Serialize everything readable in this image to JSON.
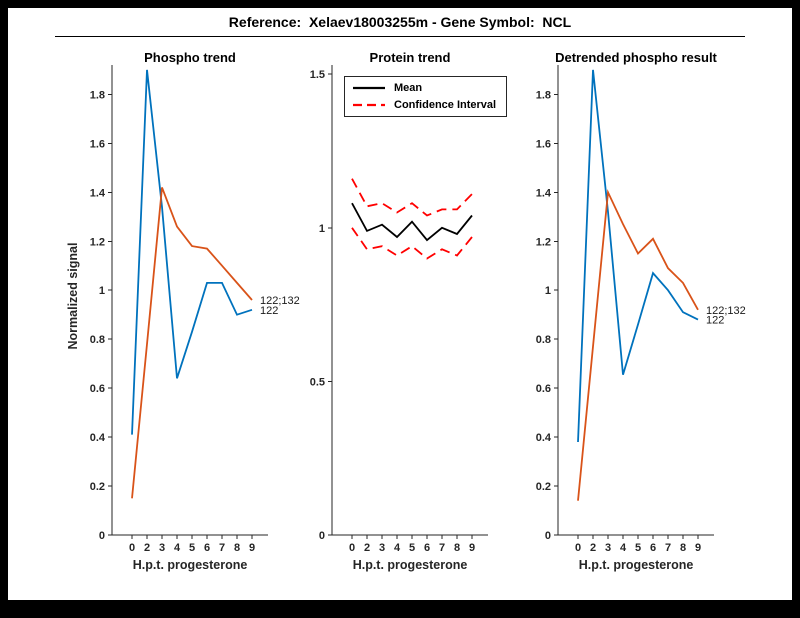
{
  "figure": {
    "title": "Reference:  Xelaev18003255m - Gene Symbol:  NCL",
    "frame_color": "#000000",
    "canvas_color": "#ffffff",
    "axis_color": "#262626"
  },
  "chart_data": [
    {
      "type": "line",
      "title": "Phospho trend",
      "xlabel": "H.p.t. progesterone",
      "ylabel": "Normalized signal",
      "categories": [
        "0",
        "2",
        "3",
        "4",
        "5",
        "6",
        "7",
        "8",
        "9"
      ],
      "ylim": [
        0,
        1.92
      ],
      "yticks": [
        0,
        0.2,
        0.4,
        0.6,
        0.8,
        1,
        1.2,
        1.4,
        1.6,
        1.8
      ],
      "grid": false,
      "series": [
        {
          "name": "122",
          "color": "#0072BD",
          "style": "solid",
          "end_label": "122",
          "values": [
            0.41,
            1.9,
            1.34,
            0.64,
            0.83,
            1.03,
            1.03,
            0.9,
            0.92
          ]
        },
        {
          "name": "122;132",
          "color": "#D95319",
          "style": "solid",
          "end_label": "122;132",
          "values": [
            0.15,
            0.78,
            1.42,
            1.26,
            1.18,
            1.17,
            1.1,
            1.03,
            0.96
          ]
        }
      ]
    },
    {
      "type": "line",
      "title": "Protein trend",
      "xlabel": "H.p.t. progesterone",
      "ylabel": "",
      "categories": [
        "0",
        "2",
        "3",
        "4",
        "5",
        "6",
        "7",
        "8",
        "9"
      ],
      "ylim": [
        0,
        1.53
      ],
      "yticks": [
        0,
        0.5,
        1,
        1.5
      ],
      "grid": false,
      "legend": [
        "Mean",
        "Confidence Interval"
      ],
      "legend_position": "top-left",
      "series": [
        {
          "name": "Mean",
          "color": "#000000",
          "style": "solid",
          "values": [
            1.08,
            0.99,
            1.01,
            0.97,
            1.02,
            0.96,
            1.0,
            0.98,
            1.04
          ]
        },
        {
          "name": "Confidence Interval upper",
          "color": "#FF0000",
          "style": "dashed",
          "values": [
            1.16,
            1.07,
            1.08,
            1.05,
            1.08,
            1.04,
            1.06,
            1.06,
            1.11
          ]
        },
        {
          "name": "Confidence Interval lower",
          "color": "#FF0000",
          "style": "dashed",
          "values": [
            1.0,
            0.93,
            0.94,
            0.91,
            0.94,
            0.9,
            0.93,
            0.91,
            0.97
          ]
        }
      ]
    },
    {
      "type": "line",
      "title": "Detrended phospho result",
      "xlabel": "H.p.t. progesterone",
      "ylabel": "",
      "categories": [
        "0",
        "2",
        "3",
        "4",
        "5",
        "6",
        "7",
        "8",
        "9"
      ],
      "ylim": [
        0,
        1.92
      ],
      "yticks": [
        0,
        0.2,
        0.4,
        0.6,
        0.8,
        1,
        1.2,
        1.4,
        1.6,
        1.8
      ],
      "grid": false,
      "series": [
        {
          "name": "122",
          "color": "#0072BD",
          "style": "solid",
          "end_label": "122",
          "values": [
            0.38,
            1.9,
            1.32,
            0.655,
            0.86,
            1.07,
            1.0,
            0.91,
            0.88
          ]
        },
        {
          "name": "122;132",
          "color": "#D95319",
          "style": "solid",
          "end_label": "122;132",
          "values": [
            0.14,
            0.77,
            1.4,
            1.27,
            1.15,
            1.21,
            1.09,
            1.03,
            0.92
          ]
        }
      ]
    }
  ]
}
